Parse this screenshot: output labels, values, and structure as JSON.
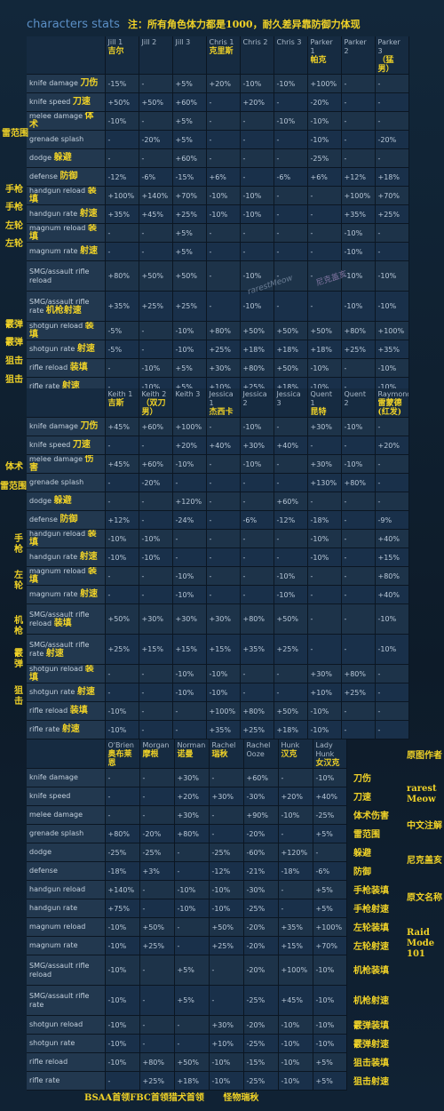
{
  "title": {
    "en": "characters stats",
    "zh": "注：所有角色体力都是1000，耐久差异靠防御力体现"
  },
  "tables": [
    {
      "headers": [
        {
          "en": "Jill 1",
          "zh": "吉尔"
        },
        {
          "en": "Jill 2",
          "zh": ""
        },
        {
          "en": "Jill 3",
          "zh": ""
        },
        {
          "en": "Chris 1",
          "zh": "克里斯"
        },
        {
          "en": "Chris 2",
          "zh": ""
        },
        {
          "en": "Chris 3",
          "zh": ""
        },
        {
          "en": "Parker 1",
          "zh": "帕克"
        },
        {
          "en": "Parker 2",
          "zh": ""
        },
        {
          "en": "Parker 3",
          "zh": "（猛男）"
        }
      ],
      "rows": [
        {
          "label": "knife damage",
          "zh": "刀伤",
          "values": [
            "-15%",
            "-",
            "+5%",
            "+20%",
            "-10%",
            "-10%",
            "+100%",
            "-",
            "-"
          ]
        },
        {
          "label": "knife speed",
          "zh": "刀速",
          "values": [
            "+50%",
            "+50%",
            "+60%",
            "-",
            "+20%",
            "-",
            "-20%",
            "-",
            "-"
          ]
        },
        {
          "label": "melee damage",
          "zh": "体术",
          "values": [
            "-10%",
            "-",
            "+5%",
            "-",
            "-",
            "-10%",
            "-10%",
            "-",
            "-"
          ]
        },
        {
          "label": "grenade splash",
          "zh": "",
          "values": [
            "-",
            "-20%",
            "+5%",
            "-",
            "-",
            "-",
            "-10%",
            "-",
            "-20%"
          ]
        },
        {
          "label": "dodge",
          "zh": "躲避",
          "values": [
            "-",
            "-",
            "+60%",
            "-",
            "-",
            "-",
            "-25%",
            "-",
            "-"
          ]
        },
        {
          "label": "defense",
          "zh": "防御",
          "values": [
            "-12%",
            "-6%",
            "-15%",
            "+6%",
            "-",
            "-6%",
            "+6%",
            "+12%",
            "+18%"
          ]
        },
        {
          "label": "handgun reload",
          "zh": "装填",
          "values": [
            "+100%",
            "+140%",
            "+70%",
            "-10%",
            "-10%",
            "-",
            "-",
            "+100%",
            "+70%"
          ]
        },
        {
          "label": "handgun rate",
          "zh": "射速",
          "values": [
            "+35%",
            "+45%",
            "+25%",
            "-10%",
            "-10%",
            "-",
            "-",
            "+35%",
            "+25%"
          ]
        },
        {
          "label": "magnum reload",
          "zh": "装填",
          "values": [
            "-",
            "-",
            "+5%",
            "-",
            "-",
            "-",
            "-",
            "-10%",
            "-"
          ]
        },
        {
          "label": "magnum rate",
          "zh": "射速",
          "values": [
            "-",
            "-",
            "+5%",
            "-",
            "-",
            "-",
            "-",
            "-10%",
            "-"
          ]
        },
        {
          "label": "SMG/assault rifle reload",
          "zh": "",
          "values": [
            "+80%",
            "+50%",
            "+50%",
            "-",
            "-10%",
            "-",
            "-",
            "-10%",
            "-10%"
          ]
        },
        {
          "label": "SMG/assault rifle rate",
          "zh": "机枪射速",
          "values": [
            "+35%",
            "+25%",
            "+25%",
            "-",
            "-10%",
            "-",
            "-",
            "-10%",
            "-10%"
          ]
        },
        {
          "label": "shotgun reload",
          "zh": "装填",
          "values": [
            "-5%",
            "-",
            "-10%",
            "+80%",
            "+50%",
            "+50%",
            "+50%",
            "+80%",
            "+100%"
          ]
        },
        {
          "label": "shotgun rate",
          "zh": "射速",
          "values": [
            "-5%",
            "-",
            "-10%",
            "+25%",
            "+18%",
            "+18%",
            "+18%",
            "+25%",
            "+35%"
          ]
        },
        {
          "label": "rifle reload",
          "zh": "装填",
          "values": [
            "-",
            "-10%",
            "+5%",
            "+30%",
            "+80%",
            "+50%",
            "-10%",
            "-",
            "-10%"
          ]
        },
        {
          "label": "rifle rate",
          "zh": "射速",
          "values": [
            "-",
            "-10%",
            "+5%",
            "+10%",
            "+25%",
            "+18%",
            "-10%",
            "-",
            "-10%"
          ]
        }
      ]
    },
    {
      "headers": [
        {
          "en": "Keith 1",
          "zh": "吉斯"
        },
        {
          "en": "Keith 2",
          "zh": "（双刀男）"
        },
        {
          "en": "Keith 3",
          "zh": ""
        },
        {
          "en": "Jessica 1",
          "zh": "杰西卡"
        },
        {
          "en": "Jessica 2",
          "zh": ""
        },
        {
          "en": "Jessica 3",
          "zh": ""
        },
        {
          "en": "Quent 1",
          "zh": "昆特"
        },
        {
          "en": "Quent 2",
          "zh": ""
        },
        {
          "en": "Raymond",
          "zh": "雷蒙德(红发)"
        }
      ],
      "rows": [
        {
          "label": "knife damage",
          "zh": "刀伤",
          "values": [
            "+45%",
            "+60%",
            "+100%",
            "-",
            "-10%",
            "-",
            "+30%",
            "-10%",
            "-"
          ]
        },
        {
          "label": "knife speed",
          "zh": "刀速",
          "values": [
            "-",
            "-",
            "+20%",
            "+40%",
            "+30%",
            "+40%",
            "-",
            "-",
            "+20%"
          ]
        },
        {
          "label": "melee damage",
          "zh": "伤害",
          "values": [
            "+45%",
            "+60%",
            "-10%",
            "-",
            "-10%",
            "-",
            "+30%",
            "-10%",
            "-"
          ]
        },
        {
          "label": "grenade splash",
          "zh": "",
          "values": [
            "-",
            "-20%",
            "-",
            "-",
            "-",
            "-",
            "+130%",
            "+80%",
            "-"
          ]
        },
        {
          "label": "dodge",
          "zh": "躲避",
          "values": [
            "-",
            "-",
            "+120%",
            "-",
            "-",
            "+60%",
            "-",
            "-",
            "-"
          ]
        },
        {
          "label": "defense",
          "zh": "防御",
          "values": [
            "+12%",
            "-",
            "-24%",
            "-",
            "-6%",
            "-12%",
            "-18%",
            "-",
            "-9%"
          ]
        },
        {
          "label": "handgun reload",
          "zh": "装填",
          "values": [
            "-10%",
            "-10%",
            "-",
            "-",
            "-",
            "-",
            "-10%",
            "-",
            "+40%"
          ]
        },
        {
          "label": "handgun rate",
          "zh": "射速",
          "values": [
            "-10%",
            "-10%",
            "-",
            "-",
            "-",
            "-",
            "-10%",
            "-",
            "+15%"
          ]
        },
        {
          "label": "magnum reload",
          "zh": "装填",
          "values": [
            "-",
            "-",
            "-10%",
            "-",
            "-",
            "-10%",
            "-",
            "-",
            "+80%"
          ]
        },
        {
          "label": "magnum rate",
          "zh": "射速",
          "values": [
            "-",
            "-",
            "-10%",
            "-",
            "-",
            "-10%",
            "-",
            "-",
            "+40%"
          ]
        },
        {
          "label": "SMG/assault rifle reload",
          "zh": "装填",
          "values": [
            "+50%",
            "+30%",
            "+30%",
            "+30%",
            "+80%",
            "+50%",
            "-",
            "-",
            "-10%"
          ]
        },
        {
          "label": "SMG/assault rifle rate",
          "zh": "射速",
          "values": [
            "+25%",
            "+15%",
            "+15%",
            "+15%",
            "+35%",
            "+25%",
            "-",
            "-",
            "-10%"
          ]
        },
        {
          "label": "shotgun reload",
          "zh": "装填",
          "values": [
            "-",
            "-",
            "-10%",
            "-10%",
            "-",
            "-",
            "+30%",
            "+80%",
            "-"
          ]
        },
        {
          "label": "shotgun rate",
          "zh": "射速",
          "values": [
            "-",
            "-",
            "-10%",
            "-10%",
            "-",
            "-",
            "+10%",
            "+25%",
            "-"
          ]
        },
        {
          "label": "rifle reload",
          "zh": "装填",
          "values": [
            "-10%",
            "-",
            "-",
            "+100%",
            "+80%",
            "+50%",
            "-10%",
            "-",
            "-"
          ]
        },
        {
          "label": "rifle rate",
          "zh": "射速",
          "values": [
            "-10%",
            "-",
            "-",
            "+35%",
            "+25%",
            "+18%",
            "-10%",
            "-",
            "-"
          ]
        }
      ]
    },
    {
      "headers": [
        {
          "en": "O'Brien",
          "zh": "奥布莱恩"
        },
        {
          "en": "Morgan",
          "zh": "摩根"
        },
        {
          "en": "Norman",
          "zh": "诺曼"
        },
        {
          "en": "Rachel",
          "zh": "瑞秋"
        },
        {
          "en": "Rachel Ooze",
          "zh": ""
        },
        {
          "en": "Hunk",
          "zh": "汉克"
        },
        {
          "en": "Lady Hunk",
          "zh": "女汉克"
        }
      ],
      "rows": [
        {
          "label": "knife damage",
          "zh": "刀伤",
          "values": [
            "-",
            "-",
            "+30%",
            "-",
            "+60%",
            "-",
            "-10%"
          ]
        },
        {
          "label": "knife speed",
          "zh": "刀速",
          "values": [
            "-",
            "-",
            "+20%",
            "+30%",
            "-30%",
            "+20%",
            "+40%"
          ]
        },
        {
          "label": "melee damage",
          "zh": "体术伤害",
          "values": [
            "-",
            "-",
            "+30%",
            "-",
            "+90%",
            "-10%",
            "-25%"
          ]
        },
        {
          "label": "grenade splash",
          "zh": "雷范围",
          "values": [
            "+80%",
            "-20%",
            "+80%",
            "-",
            "-20%",
            "-",
            "+5%"
          ]
        },
        {
          "label": "dodge",
          "zh": "躲避",
          "values": [
            "-25%",
            "-25%",
            "-",
            "-25%",
            "-60%",
            "+120%",
            "-"
          ]
        },
        {
          "label": "defense",
          "zh": "防御",
          "values": [
            "-18%",
            "+3%",
            "-",
            "-12%",
            "-21%",
            "-18%",
            "-6%"
          ]
        },
        {
          "label": "handgun reload",
          "zh": "手枪装填",
          "values": [
            "+140%",
            "-",
            "-10%",
            "-10%",
            "-30%",
            "-",
            "+5%"
          ]
        },
        {
          "label": "handgun rate",
          "zh": "手枪射速",
          "values": [
            "+75%",
            "-",
            "-10%",
            "-10%",
            "-25%",
            "-",
            "+5%"
          ]
        },
        {
          "label": "magnum reload",
          "zh": "左轮装填",
          "values": [
            "-10%",
            "+50%",
            "-",
            "+50%",
            "-20%",
            "+35%",
            "+100%"
          ]
        },
        {
          "label": "magnum rate",
          "zh": "左轮射速",
          "values": [
            "-10%",
            "+25%",
            "-",
            "+25%",
            "-20%",
            "+15%",
            "+70%"
          ]
        },
        {
          "label": "SMG/assault rifle reload",
          "zh": "机枪装填",
          "values": [
            "-10%",
            "-",
            "+5%",
            "-",
            "-20%",
            "+100%",
            "-10%"
          ]
        },
        {
          "label": "SMG/assault rifle rate",
          "zh": "机枪射速",
          "values": [
            "-10%",
            "-",
            "+5%",
            "-",
            "-25%",
            "+45%",
            "-10%"
          ]
        },
        {
          "label": "shotgun reload",
          "zh": "霰弹装填",
          "values": [
            "-10%",
            "-",
            "-",
            "+30%",
            "-20%",
            "-10%",
            "-10%"
          ]
        },
        {
          "label": "shotgun rate",
          "zh": "霰弹射速",
          "values": [
            "-10%",
            "-",
            "-",
            "+10%",
            "-25%",
            "-10%",
            "-10%"
          ]
        },
        {
          "label": "rifle reload",
          "zh": "狙击装填",
          "values": [
            "-10%",
            "+80%",
            "+50%",
            "-10%",
            "-15%",
            "-10%",
            "+5%"
          ]
        },
        {
          "label": "rifle rate",
          "zh": "狙击射速",
          "values": [
            "-",
            "+25%",
            "+18%",
            "-10%",
            "-25%",
            "-10%",
            "+5%"
          ]
        }
      ]
    }
  ],
  "side_labels": {
    "t1": [
      "雷范围",
      "手枪",
      "手枪",
      "左轮",
      "左轮",
      "霰弹",
      "霰弹",
      "狙击",
      "狙击"
    ],
    "t2": [
      "体术",
      "雷范围",
      "手枪",
      "左轮",
      "机枪",
      "霰弹",
      "狙击"
    ]
  },
  "watermarks": [
    "rarestMeow",
    "尼克盖亥"
  ],
  "right_notes": [
    "原图作者",
    "rarest Meow",
    "中文注解",
    "尼克盖亥",
    "原文名称",
    "Raid Mode 101"
  ],
  "footer": [
    "BSAA首领FBC首领猎犬首领",
    "怪物瑞秋"
  ]
}
